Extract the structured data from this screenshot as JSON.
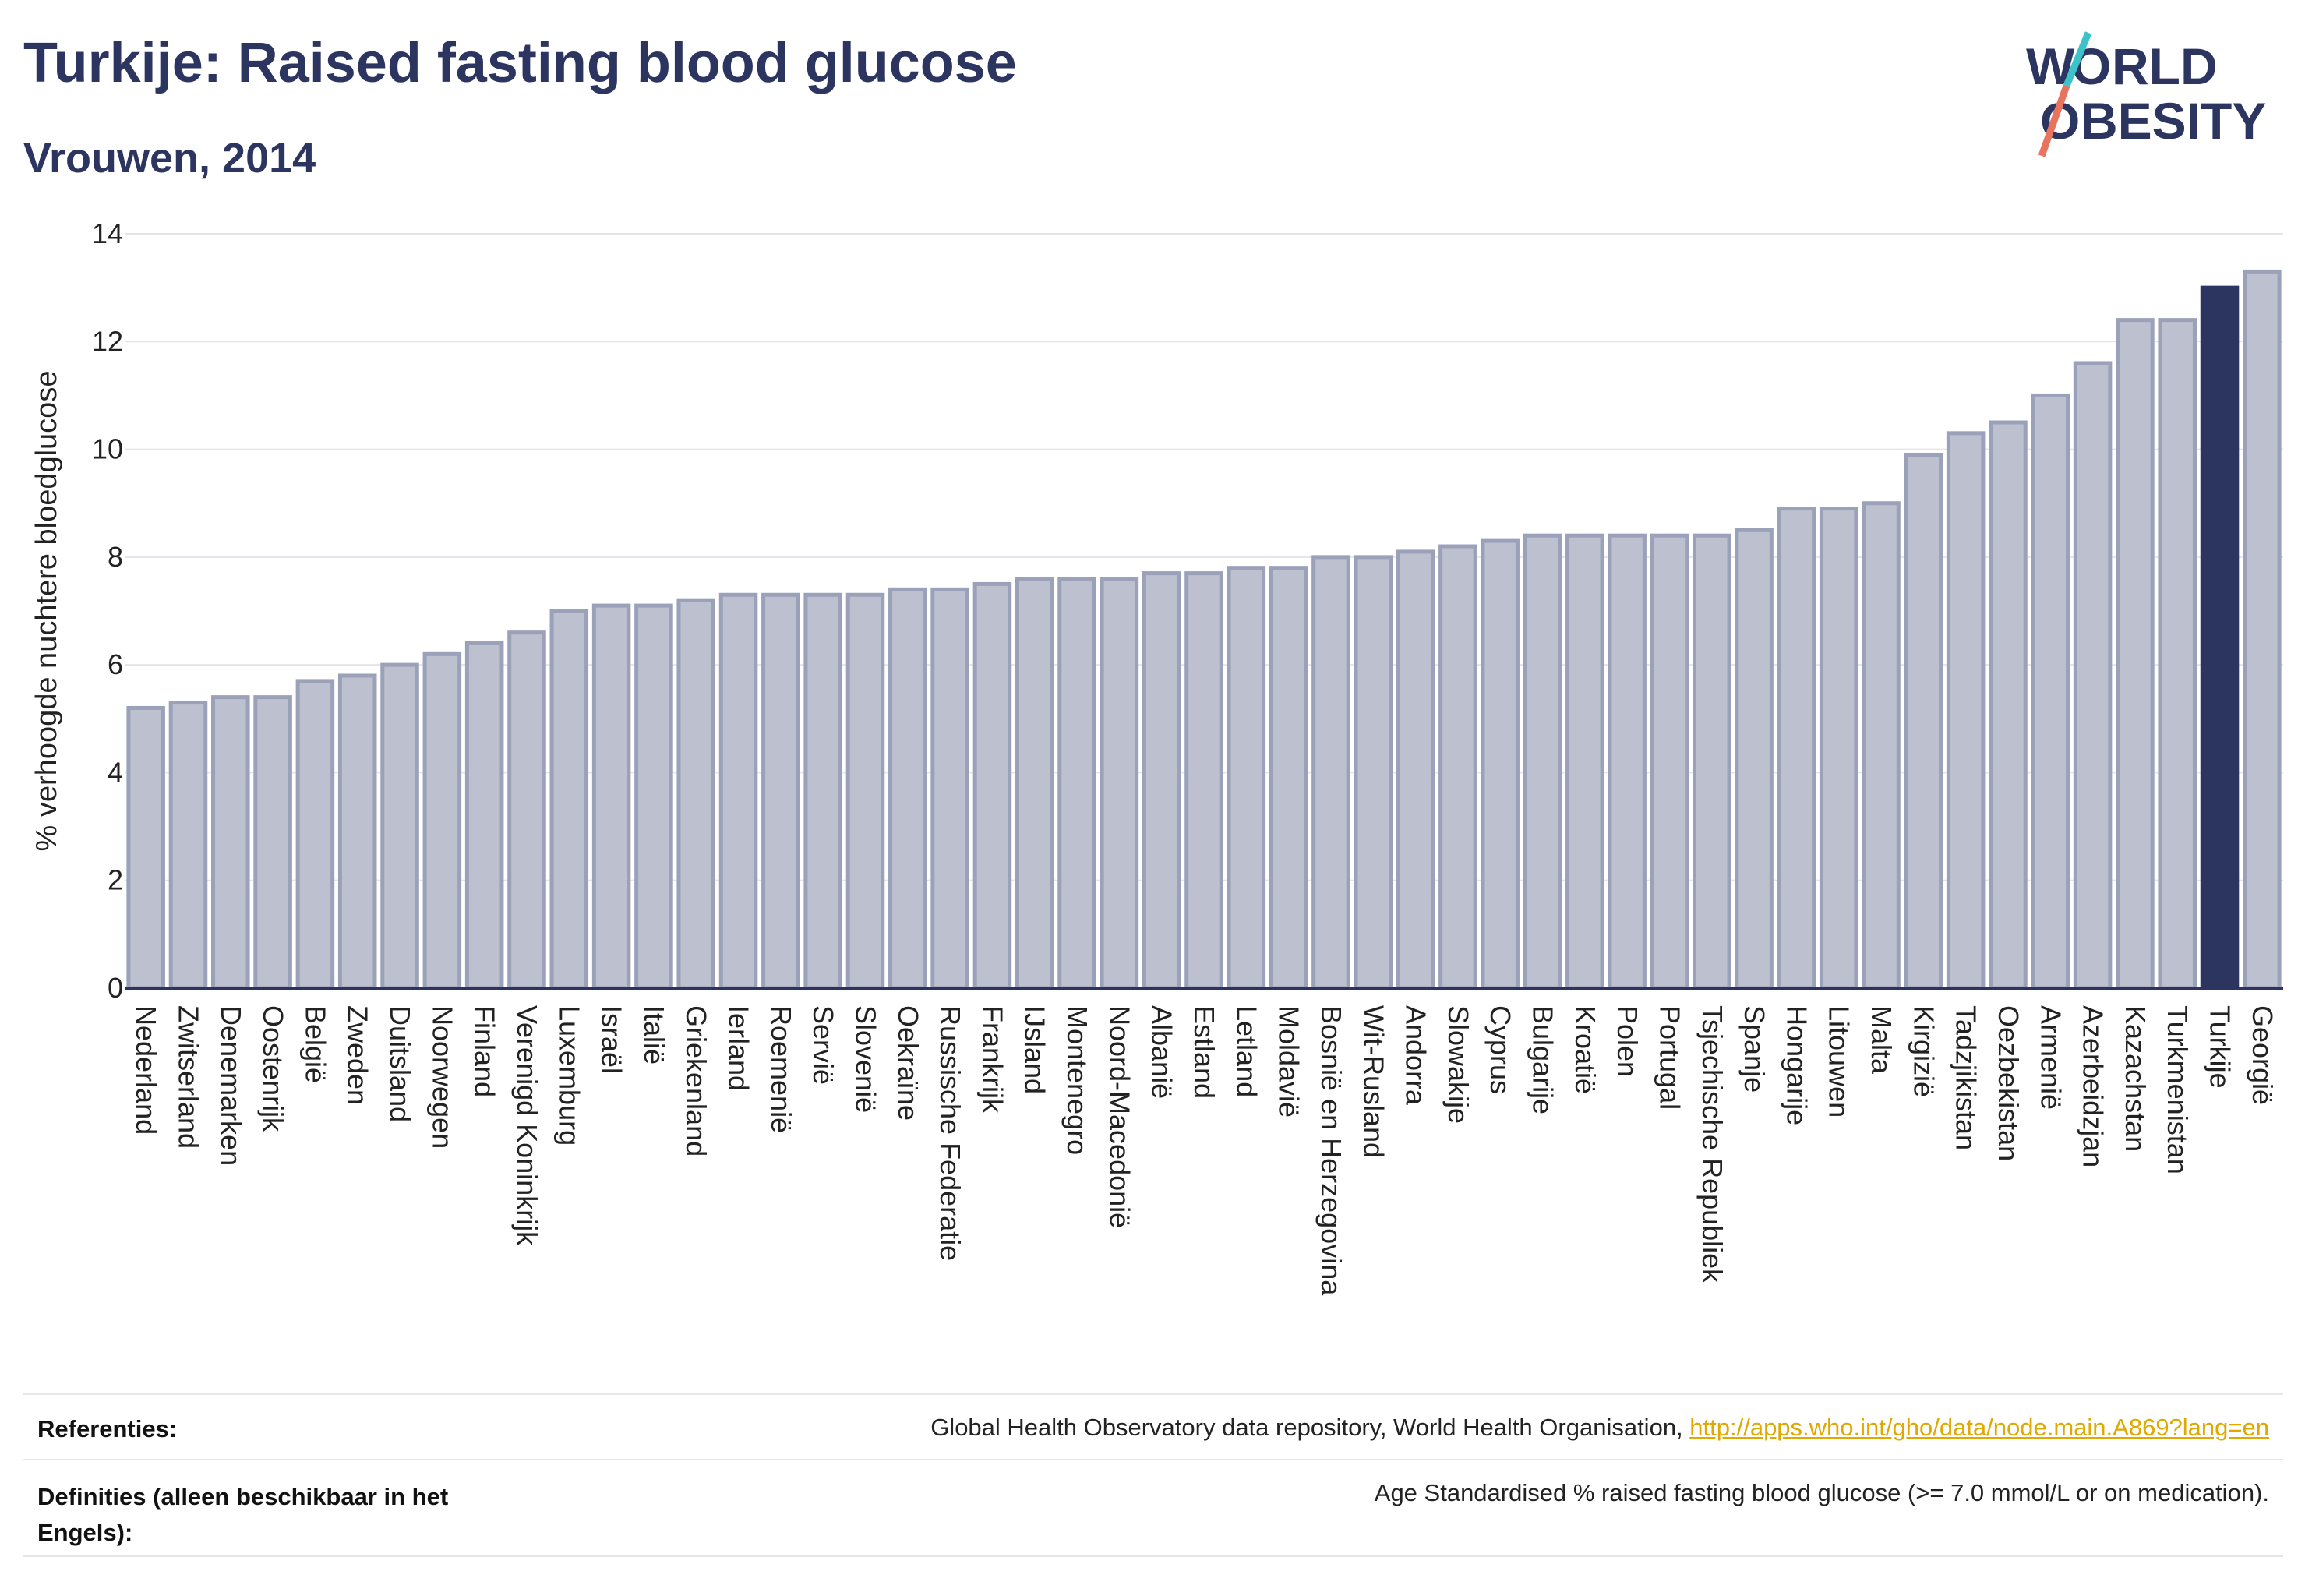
{
  "header": {
    "title": "Turkije: Raised fasting blood glucose",
    "subtitle": "Vrouwen, 2014"
  },
  "logo": {
    "line1": "WORLD",
    "line2": "OBESITY"
  },
  "colors": {
    "primary": "#2c3560",
    "bar_default": "#bcc0cf",
    "bar_border": "#9aa1b9",
    "highlight": "#2c3560",
    "link": "#e0a800",
    "logo_teal": "#3cc2c8",
    "logo_coral": "#e8735e"
  },
  "chart_data": {
    "type": "bar",
    "ylabel": "% verhoogde nuchtere bloedglucose",
    "xlabel": "",
    "ylim": [
      0,
      14
    ],
    "yticks": [
      0,
      2,
      4,
      6,
      8,
      10,
      12,
      14
    ],
    "grid": true,
    "highlight": "Turkije",
    "categories": [
      "Nederland",
      "Zwitserland",
      "Denemarken",
      "Oostenrijk",
      "België",
      "Zweden",
      "Duitsland",
      "Noorwegen",
      "Finland",
      "Verenigd Koninkrijk",
      "Luxemburg",
      "Israël",
      "Italië",
      "Griekenland",
      "Ierland",
      "Roemenië",
      "Servië",
      "Slovenië",
      "Oekraïne",
      "Russische Federatie",
      "Frankrijk",
      "IJsland",
      "Montenegro",
      "Noord-Macedonië",
      "Albanië",
      "Estland",
      "Letland",
      "Moldavië",
      "Bosnië en Herzegovina",
      "Wit-Rusland",
      "Andorra",
      "Slowakije",
      "Cyprus",
      "Bulgarije",
      "Kroatië",
      "Polen",
      "Portugal",
      "Tsjechische Republiek",
      "Spanje",
      "Hongarije",
      "Litouwen",
      "Malta",
      "Kirgizië",
      "Tadzjikistan",
      "Oezbekistan",
      "Armenië",
      "Azerbeidzjan",
      "Kazachstan",
      "Turkmenistan",
      "Turkije",
      "Georgië"
    ],
    "values": [
      5.2,
      5.3,
      5.4,
      5.4,
      5.7,
      5.8,
      6.0,
      6.2,
      6.4,
      6.6,
      7.0,
      7.1,
      7.1,
      7.2,
      7.3,
      7.3,
      7.3,
      7.3,
      7.4,
      7.4,
      7.5,
      7.6,
      7.6,
      7.6,
      7.7,
      7.7,
      7.8,
      7.8,
      8.0,
      8.0,
      8.1,
      8.2,
      8.3,
      8.4,
      8.4,
      8.4,
      8.4,
      8.4,
      8.5,
      8.9,
      8.9,
      9.0,
      9.9,
      10.3,
      10.5,
      11.0,
      11.6,
      12.4,
      12.4,
      13.0,
      13.3
    ]
  },
  "footer": {
    "references_label": "Referenties:",
    "references_text": "Global Health Observatory data repository, World Health Organisation, ",
    "references_link": "http://apps.who.int/gho/data/node.main.A869?lang=en",
    "definitions_label": "Definities (alleen beschikbaar in het Engels):",
    "definitions_text": "Age Standardised % raised fasting blood glucose (>= 7.0 mmol/L or on medication)."
  }
}
